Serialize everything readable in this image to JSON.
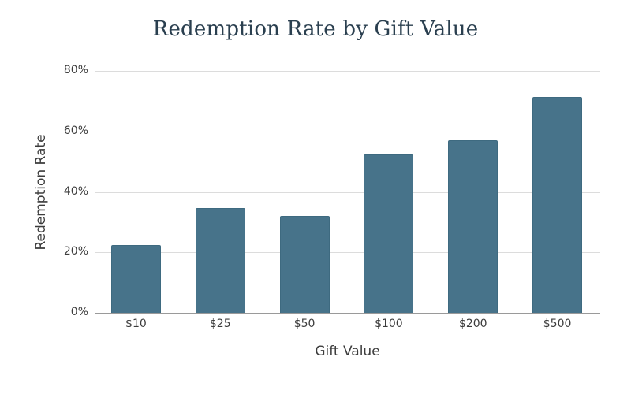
{
  "chart_data": {
    "type": "bar",
    "title": "Redemption Rate by Gift Value",
    "xlabel": "Gift Value",
    "ylabel": "Redemption Rate",
    "categories": [
      "$10",
      "$25",
      "$50",
      "$100",
      "$200",
      "$500"
    ],
    "values": [
      22.4,
      34.6,
      32.0,
      52.5,
      57.0,
      71.5
    ],
    "value_format": "percent",
    "ylim": [
      0,
      80
    ],
    "yticks": [
      0,
      20,
      40,
      60,
      80
    ],
    "ytick_labels": [
      "0%",
      "20%",
      "40%",
      "60%",
      "80%"
    ],
    "grid": true,
    "legend": null,
    "bar_color": "#47738a"
  }
}
